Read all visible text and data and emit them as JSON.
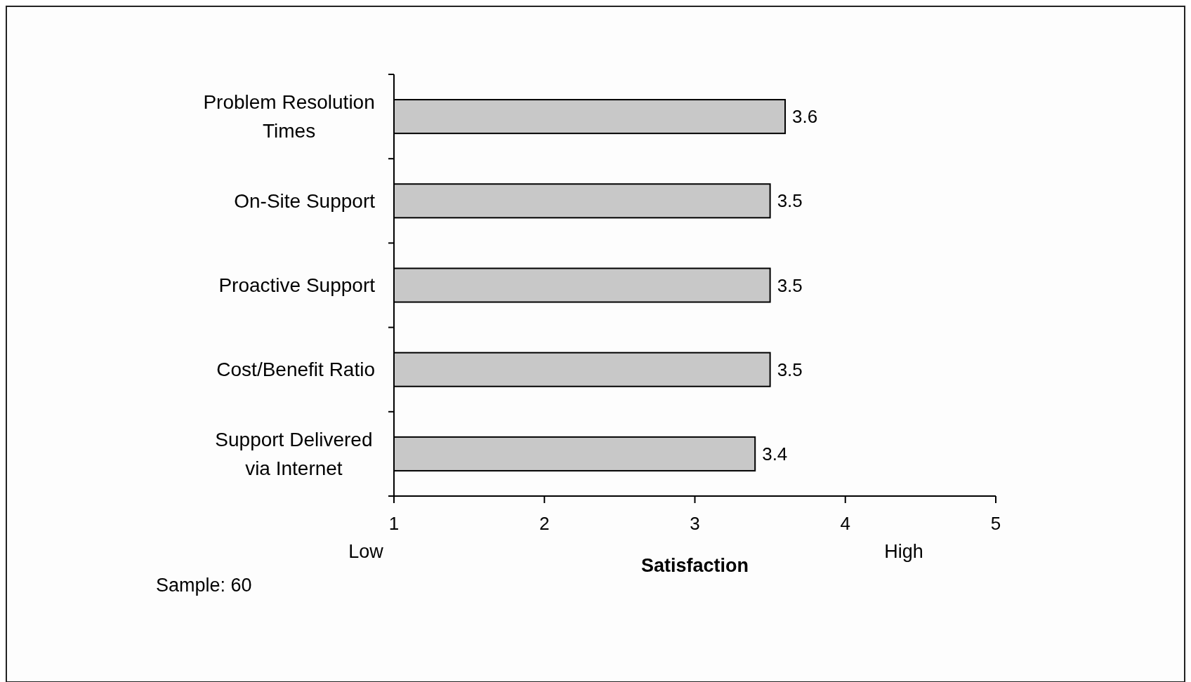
{
  "chart_data": {
    "type": "bar",
    "orientation": "horizontal",
    "xlabel": "Satisfaction",
    "categories": [
      "Problem Resolution Times",
      "On-Site Support",
      "Proactive Support",
      "Cost/Benefit Ratio",
      "Support Delivered via Internet"
    ],
    "values": [
      3.6,
      3.5,
      3.5,
      3.5,
      3.4
    ],
    "color": "#c8c8c8",
    "data_labels": true,
    "xlim": [
      1,
      5
    ],
    "xticks": [
      1,
      2,
      3,
      4,
      5
    ],
    "grid": false,
    "annotations": [
      "Low",
      "High",
      "Sample: 60"
    ]
  }
}
